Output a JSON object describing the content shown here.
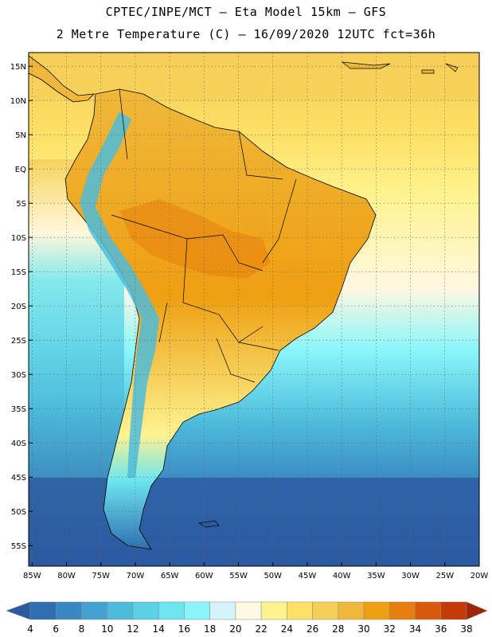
{
  "title_line1": "CPTEC/INPE/MCT –  Eta Model 15km – GFS",
  "title_line2": "2 Metre Temperature (C) – 16/09/2020 12UTC fct=36h",
  "map": {
    "lat_labels": [
      "15N",
      "10N",
      "5N",
      "EQ",
      "5S",
      "10S",
      "15S",
      "20S",
      "25S",
      "30S",
      "35S",
      "40S",
      "45S",
      "50S",
      "55S"
    ],
    "lon_labels": [
      "85W",
      "80W",
      "75W",
      "70W",
      "65W",
      "60W",
      "55W",
      "50W",
      "45W",
      "40W",
      "35W",
      "30W",
      "25W",
      "20W"
    ],
    "lat_range": [
      17,
      -58
    ],
    "lon_range": [
      -85.5,
      -20
    ],
    "gridlines": "dotted"
  },
  "colorbar": {
    "labels": [
      "4",
      "6",
      "8",
      "10",
      "12",
      "14",
      "16",
      "18",
      "20",
      "22",
      "24",
      "26",
      "28",
      "30",
      "32",
      "34",
      "36",
      "38"
    ],
    "colors": [
      "#2c5aa0",
      "#2e6fb0",
      "#3a88c2",
      "#43a2cf",
      "#4dbcdb",
      "#58d2e4",
      "#6de6ef",
      "#8af6fb",
      "#d4f4fb",
      "#fff8e2",
      "#fff390",
      "#fde066",
      "#f6cf58",
      "#efb83a",
      "#ef9f12",
      "#e67f0e",
      "#d95a0a",
      "#c43a08",
      "#a02406"
    ]
  }
}
